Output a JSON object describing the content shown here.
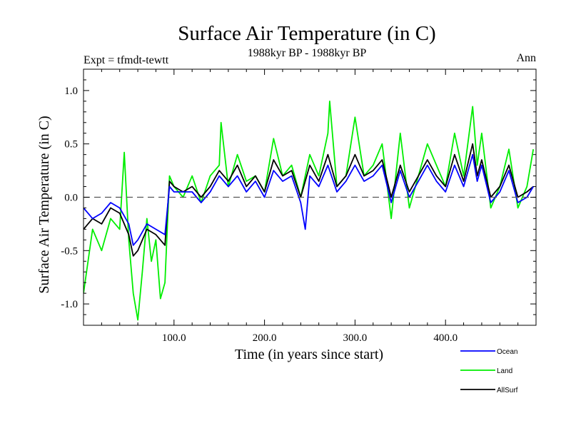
{
  "chart_data": {
    "type": "line",
    "title": "Surface Air Temperature (in C)",
    "subtitle": "1988kyr BP - 1988kyr BP",
    "left_label": "Expt = tfmdt-tewtt",
    "right_label": "Ann",
    "xlabel": "Time (in years since start)",
    "ylabel": "Surface Air Temperature (in C)",
    "xlim": [
      0,
      500
    ],
    "ylim": [
      -1.2,
      1.2
    ],
    "x_ticks": [
      {
        "value": 100,
        "label": "100.0"
      },
      {
        "value": 200,
        "label": "200.0"
      },
      {
        "value": 300,
        "label": "300.0"
      },
      {
        "value": 400,
        "label": "400.0"
      }
    ],
    "y_ticks": [
      {
        "value": 1.0,
        "label": "1.0"
      },
      {
        "value": 0.5,
        "label": "0.5"
      },
      {
        "value": 0.0,
        "label": "0.0"
      },
      {
        "value": -0.5,
        "label": "-0.5"
      },
      {
        "value": -1.0,
        "label": "-1.0"
      }
    ],
    "reference_line": 0.0,
    "legend_position": "bottom-right",
    "series": [
      {
        "name": "Land",
        "color": "#00ee00",
        "x": [
          0,
          10,
          20,
          30,
          40,
          45,
          50,
          55,
          60,
          65,
          70,
          75,
          80,
          85,
          90,
          95,
          100,
          110,
          120,
          130,
          140,
          150,
          152,
          160,
          170,
          180,
          190,
          200,
          210,
          220,
          230,
          240,
          250,
          260,
          270,
          272,
          280,
          290,
          300,
          310,
          320,
          330,
          340,
          350,
          360,
          370,
          380,
          390,
          400,
          410,
          420,
          430,
          435,
          440,
          450,
          460,
          470,
          480,
          490,
          497
        ],
        "values": [
          -0.9,
          -0.3,
          -0.5,
          -0.2,
          -0.3,
          0.42,
          -0.4,
          -0.9,
          -1.15,
          -0.7,
          -0.2,
          -0.6,
          -0.4,
          -0.95,
          -0.8,
          0.2,
          0.1,
          0.0,
          0.2,
          -0.05,
          0.2,
          0.3,
          0.7,
          0.1,
          0.4,
          0.15,
          0.2,
          0.05,
          0.55,
          0.2,
          0.3,
          0.0,
          0.4,
          0.2,
          0.6,
          0.9,
          0.1,
          0.2,
          0.75,
          0.2,
          0.3,
          0.5,
          -0.2,
          0.6,
          -0.1,
          0.2,
          0.5,
          0.3,
          0.1,
          0.6,
          0.2,
          0.85,
          0.3,
          0.6,
          -0.1,
          0.1,
          0.45,
          -0.1,
          0.1,
          0.45
        ]
      },
      {
        "name": "AllSurf",
        "color": "#000000",
        "x": [
          0,
          10,
          20,
          30,
          40,
          50,
          55,
          60,
          70,
          80,
          90,
          95,
          100,
          110,
          120,
          130,
          140,
          150,
          160,
          170,
          180,
          190,
          200,
          210,
          220,
          230,
          240,
          250,
          260,
          270,
          280,
          290,
          300,
          310,
          320,
          330,
          340,
          350,
          360,
          370,
          380,
          390,
          400,
          410,
          420,
          430,
          435,
          440,
          450,
          460,
          470,
          480,
          490,
          497
        ],
        "values": [
          -0.3,
          -0.2,
          -0.25,
          -0.1,
          -0.15,
          -0.35,
          -0.55,
          -0.5,
          -0.3,
          -0.35,
          -0.45,
          0.15,
          0.1,
          0.05,
          0.1,
          0.0,
          0.1,
          0.25,
          0.15,
          0.3,
          0.1,
          0.2,
          0.05,
          0.35,
          0.2,
          0.25,
          0.0,
          0.3,
          0.15,
          0.4,
          0.1,
          0.2,
          0.4,
          0.2,
          0.25,
          0.35,
          0.0,
          0.3,
          0.05,
          0.2,
          0.35,
          0.2,
          0.1,
          0.4,
          0.15,
          0.5,
          0.2,
          0.35,
          0.0,
          0.1,
          0.3,
          0.0,
          0.05,
          0.1
        ]
      },
      {
        "name": "Ocean",
        "color": "#0000ff",
        "x": [
          0,
          10,
          20,
          30,
          40,
          50,
          55,
          60,
          70,
          80,
          90,
          95,
          100,
          110,
          120,
          130,
          140,
          150,
          160,
          170,
          180,
          190,
          200,
          210,
          220,
          230,
          240,
          245,
          250,
          260,
          270,
          280,
          290,
          300,
          310,
          320,
          330,
          340,
          350,
          360,
          370,
          380,
          390,
          400,
          410,
          420,
          430,
          435,
          440,
          450,
          460,
          470,
          480,
          490,
          497
        ],
        "values": [
          -0.1,
          -0.2,
          -0.15,
          -0.05,
          -0.1,
          -0.25,
          -0.45,
          -0.4,
          -0.25,
          -0.3,
          -0.35,
          0.1,
          0.05,
          0.05,
          0.05,
          -0.05,
          0.05,
          0.2,
          0.1,
          0.2,
          0.05,
          0.15,
          0.0,
          0.25,
          0.15,
          0.2,
          -0.05,
          -0.3,
          0.2,
          0.1,
          0.3,
          0.05,
          0.15,
          0.3,
          0.15,
          0.2,
          0.3,
          -0.05,
          0.25,
          0.0,
          0.15,
          0.3,
          0.15,
          0.05,
          0.3,
          0.1,
          0.4,
          0.15,
          0.3,
          -0.05,
          0.05,
          0.25,
          -0.05,
          0.0,
          0.1
        ]
      }
    ],
    "legend": [
      {
        "name": "Ocean",
        "color": "#0000ff"
      },
      {
        "name": "Land",
        "color": "#00ee00"
      },
      {
        "name": "AllSurf",
        "color": "#000000"
      }
    ]
  }
}
